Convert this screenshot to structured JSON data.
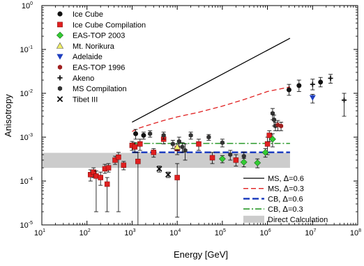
{
  "chart_data": {
    "type": "scatter",
    "xscale": "log",
    "yscale": "log",
    "xlim": [
      10,
      100000000
    ],
    "ylim": [
      1e-05,
      1
    ],
    "xlabel": "Energy [GeV]",
    "ylabel": "Anisotropy",
    "xticks": [
      {
        "v": 10,
        "mant": "10",
        "exp": "1"
      },
      {
        "v": 100,
        "mant": "10",
        "exp": "2"
      },
      {
        "v": 1000,
        "mant": "10",
        "exp": "3"
      },
      {
        "v": 10000,
        "mant": "10",
        "exp": "4"
      },
      {
        "v": 100000,
        "mant": "10",
        "exp": "5"
      },
      {
        "v": 1000000,
        "mant": "10",
        "exp": "6"
      },
      {
        "v": 10000000,
        "mant": "10",
        "exp": "7"
      },
      {
        "v": 100000000,
        "mant": "10",
        "exp": "8"
      }
    ],
    "yticks": [
      {
        "v": 1e-05,
        "mant": "10",
        "exp": "-5"
      },
      {
        "v": 0.0001,
        "mant": "10",
        "exp": "-4"
      },
      {
        "v": 0.001,
        "mant": "10",
        "exp": "-3"
      },
      {
        "v": 0.01,
        "mant": "10",
        "exp": "-2"
      },
      {
        "v": 0.1,
        "mant": "10",
        "exp": "-1"
      },
      {
        "v": 1,
        "mant": "10",
        "exp": "0"
      }
    ],
    "legend_top": [
      {
        "label": "Ice Cube",
        "marker": "circle",
        "color": "#111111"
      },
      {
        "label": "Ice Cube Compilation",
        "marker": "square",
        "color": "#e02020"
      },
      {
        "label": "EAS-TOP 2003",
        "marker": "diamond",
        "color": "#33cc33"
      },
      {
        "label": "Mt. Norikura",
        "marker": "triangle-up",
        "color": "#f0ee66"
      },
      {
        "label": "Adelaide",
        "marker": "triangle-down",
        "color": "#1f3fbf"
      },
      {
        "label": "EAS-TOP 1996",
        "marker": "hexagon",
        "color": "#a02020"
      },
      {
        "label": "Akeno",
        "marker": "plus",
        "color": "#111111"
      },
      {
        "label": "MS Compilation",
        "marker": "hexagon",
        "color": "#333333"
      },
      {
        "label": "Tibet III",
        "marker": "x",
        "color": "#111111"
      }
    ],
    "legend_bottom": [
      {
        "label_pre": "MS, ",
        "label_post": "=0.6",
        "style": "solid-black"
      },
      {
        "label_pre": "MS, ",
        "label_post": "=0.3",
        "style": "dashed-red"
      },
      {
        "label_pre": "CB, ",
        "label_post": "=0.6",
        "style": "dashed-blue"
      },
      {
        "label_pre": "CB, ",
        "label_post": "=0.3",
        "style": "dashdot-green"
      },
      {
        "label": "Direct Calculation",
        "style": "box-gray"
      }
    ],
    "lines": [
      {
        "name": "MS, Δ=0.6",
        "color": "#000000",
        "dash": "",
        "width": 1.3,
        "x": [
          1000,
          3160000
        ],
        "y": [
          0.0022,
          0.18
        ]
      },
      {
        "name": "MS, Δ=0.3",
        "color": "#e02020",
        "dash": "7,4",
        "width": 1.3,
        "x": [
          1000,
          1400,
          2000,
          5000,
          10000,
          30000,
          100000,
          300000,
          1000000,
          3160000
        ],
        "y": [
          0.00135,
          0.0016,
          0.0018,
          0.0024,
          0.0029,
          0.0037,
          0.0051,
          0.0072,
          0.011,
          0.014
        ]
      },
      {
        "name": "CB, Δ=0.6",
        "color": "#1f3fbf",
        "dash": "9,4",
        "width": 2.5,
        "x": [
          1000,
          3160000
        ],
        "y": [
          0.00045,
          0.00045
        ]
      },
      {
        "name": "CB, Δ=0.3",
        "color": "#2a9a2a",
        "dash": "9,3,2,3",
        "width": 1.6,
        "x": [
          1000,
          3160000
        ],
        "y": [
          0.00072,
          0.00072
        ]
      }
    ],
    "band": {
      "x": [
        10,
        3160000
      ],
      "y": [
        0.0002,
        0.00044
      ],
      "color": "#cccccc"
    },
    "points": [
      {
        "x": 120,
        "y": 0.00014,
        "lo": 0.0001,
        "hi": 0.00018,
        "m": "square",
        "c": "#e02020"
      },
      {
        "x": 140,
        "y": 0.00016,
        "lo": 0.00012,
        "hi": 0.0002,
        "m": "square",
        "c": "#e02020"
      },
      {
        "x": 160,
        "y": 0.00013,
        "lo": 2e-05,
        "hi": 0.00017,
        "m": "square",
        "c": "#e02020"
      },
      {
        "x": 200,
        "y": 0.00012,
        "lo": 8e-05,
        "hi": 0.00016,
        "m": "square",
        "c": "#e02020"
      },
      {
        "x": 250,
        "y": 0.00019,
        "lo": 0.00015,
        "hi": 0.00024,
        "m": "square",
        "c": "#e02020"
      },
      {
        "x": 280,
        "y": 8.5e-05,
        "lo": 2e-05,
        "hi": 0.00012,
        "m": "square",
        "c": "#e02020"
      },
      {
        "x": 300,
        "y": 0.0002,
        "lo": 0.00016,
        "hi": 0.00025,
        "m": "square",
        "c": "#e02020"
      },
      {
        "x": 420,
        "y": 0.0003,
        "lo": 0.00024,
        "hi": 0.00037,
        "m": "square",
        "c": "#e02020"
      },
      {
        "x": 500,
        "y": 0.00035,
        "lo": 2e-05,
        "hi": 0.00045,
        "m": "square",
        "c": "#e02020"
      },
      {
        "x": 650,
        "y": 0.00023,
        "lo": 0.00018,
        "hi": 0.00028,
        "m": "square",
        "c": "#e02020"
      },
      {
        "x": 1000,
        "y": 0.00065,
        "lo": 0.0005,
        "hi": 0.0008,
        "m": "square",
        "c": "#e02020"
      },
      {
        "x": 1150,
        "y": 0.0006,
        "lo": 0.00045,
        "hi": 0.00075,
        "m": "square",
        "c": "#e02020"
      },
      {
        "x": 1350,
        "y": 0.00028,
        "lo": 1e-05,
        "hi": 0.00045,
        "m": "square",
        "c": "#e02020"
      },
      {
        "x": 1500,
        "y": 0.0007,
        "lo": 0.0005,
        "hi": 0.0009,
        "m": "square",
        "c": "#e02020"
      },
      {
        "x": 3000,
        "y": 0.00045,
        "lo": 0.00035,
        "hi": 0.00055,
        "m": "square",
        "c": "#e02020"
      },
      {
        "x": 5000,
        "y": 0.0009,
        "lo": 0.0007,
        "hi": 0.0011,
        "m": "square",
        "c": "#e02020"
      },
      {
        "x": 10000,
        "y": 0.00055,
        "lo": 0.0004,
        "hi": 0.0007,
        "m": "square",
        "c": "#e02020"
      },
      {
        "x": 10000,
        "y": 0.00012,
        "lo": 1.5e-05,
        "hi": 0.00025,
        "m": "square",
        "c": "#e02020"
      },
      {
        "x": 30000,
        "y": 0.0007,
        "lo": 0.0005,
        "hi": 0.0009,
        "m": "square",
        "c": "#e02020"
      },
      {
        "x": 60000,
        "y": 0.00034,
        "lo": 0.00025,
        "hi": 0.00045,
        "m": "square",
        "c": "#e02020"
      },
      {
        "x": 200000,
        "y": 0.0003,
        "lo": 0.00022,
        "hi": 0.0004,
        "m": "square",
        "c": "#e02020"
      },
      {
        "x": 1000000,
        "y": 0.0007,
        "lo": 0.0004,
        "hi": 0.001,
        "m": "square",
        "c": "#e02020"
      },
      {
        "x": 1100000,
        "y": 0.0011,
        "lo": 0.0008,
        "hi": 0.0014,
        "m": "square",
        "c": "#e02020"
      },
      {
        "x": 1200,
        "y": 0.0012,
        "lo": 0.0009,
        "hi": 0.0015,
        "m": "circle",
        "c": "#111111"
      },
      {
        "x": 1800,
        "y": 0.0011,
        "lo": 0.0009,
        "hi": 0.0013,
        "m": "circle",
        "c": "#111111"
      },
      {
        "x": 2500,
        "y": 0.0012,
        "lo": 0.001,
        "hi": 0.0014,
        "m": "hexagon",
        "c": "#333333"
      },
      {
        "x": 5000,
        "y": 0.0011,
        "lo": 0.0009,
        "hi": 0.0013,
        "m": "hexagon",
        "c": "#333333"
      },
      {
        "x": 8000,
        "y": 0.0007,
        "lo": 0.00055,
        "hi": 0.00085,
        "m": "hexagon",
        "c": "#333333"
      },
      {
        "x": 11000,
        "y": 0.0008,
        "lo": 0.0006,
        "hi": 0.001,
        "m": "hexagon",
        "c": "#333333"
      },
      {
        "x": 13000,
        "y": 0.0006,
        "lo": 0.00045,
        "hi": 0.00075,
        "m": "hexagon",
        "c": "#333333"
      },
      {
        "x": 15000,
        "y": 0.0005,
        "lo": 0.0003,
        "hi": 0.0007,
        "m": "hexagon",
        "c": "#333333"
      },
      {
        "x": 20000,
        "y": 0.0011,
        "lo": 0.0009,
        "hi": 0.0013,
        "m": "hexagon",
        "c": "#333333"
      },
      {
        "x": 50000,
        "y": 0.001,
        "lo": 0.00085,
        "hi": 0.00115,
        "m": "hexagon",
        "c": "#333333"
      },
      {
        "x": 100000,
        "y": 0.00075,
        "lo": 0.0006,
        "hi": 0.0009,
        "m": "hexagon",
        "c": "#333333"
      },
      {
        "x": 150000,
        "y": 0.0004,
        "lo": 0.0003,
        "hi": 0.0005,
        "m": "hexagon",
        "c": "#333333"
      },
      {
        "x": 300000,
        "y": 0.00037,
        "lo": 0.00028,
        "hi": 0.00046,
        "m": "hexagon",
        "c": "#333333"
      },
      {
        "x": 1300000,
        "y": 0.0035,
        "lo": 0.0025,
        "hi": 0.0045,
        "m": "hexagon",
        "c": "#333333"
      },
      {
        "x": 1400000,
        "y": 0.0025,
        "lo": 0.0018,
        "hi": 0.0032,
        "m": "hexagon",
        "c": "#333333"
      },
      {
        "x": 1500000,
        "y": 0.0018,
        "lo": 0.0014,
        "hi": 0.0022,
        "m": "hexagon",
        "c": "#333333"
      },
      {
        "x": 3000000,
        "y": 0.012,
        "lo": 0.009,
        "hi": 0.016,
        "m": "circle",
        "c": "#111111"
      },
      {
        "x": 5000000,
        "y": 0.015,
        "lo": 0.011,
        "hi": 0.02,
        "m": "circle",
        "c": "#111111"
      },
      {
        "x": 15000000,
        "y": 0.018,
        "lo": 0.014,
        "hi": 0.023,
        "m": "circle",
        "c": "#111111"
      },
      {
        "x": 1700000,
        "y": 0.0019,
        "lo": 0.0014,
        "hi": 0.0024,
        "m": "hexagon",
        "c": "#a02020"
      },
      {
        "x": 2000000,
        "y": 0.0018,
        "lo": 0.0014,
        "hi": 0.0022,
        "m": "hexagon",
        "c": "#a02020"
      },
      {
        "x": 10000000,
        "y": 0.016,
        "lo": 0.012,
        "hi": 0.021,
        "m": "plus",
        "c": "#111111"
      },
      {
        "x": 25000000,
        "y": 0.022,
        "lo": 0.017,
        "hi": 0.027,
        "m": "plus",
        "c": "#111111"
      },
      {
        "x": 50000000,
        "y": 0.007,
        "lo": 0.003,
        "hi": 0.01,
        "m": "plus",
        "c": "#111111"
      },
      {
        "x": 100000,
        "y": 0.00032,
        "lo": 0.00026,
        "hi": 0.00038,
        "m": "diamond",
        "c": "#33cc33"
      },
      {
        "x": 300000,
        "y": 0.00027,
        "lo": 0.00021,
        "hi": 0.00033,
        "m": "diamond",
        "c": "#33cc33"
      },
      {
        "x": 600000,
        "y": 0.00026,
        "lo": 0.0002,
        "hi": 0.00032,
        "m": "diamond",
        "c": "#33cc33"
      },
      {
        "x": 900000,
        "y": 0.00045,
        "lo": 0.00035,
        "hi": 0.00055,
        "m": "diamond",
        "c": "#33cc33"
      },
      {
        "x": 1300000,
        "y": 0.0009,
        "lo": 0.0006,
        "hi": 0.0012,
        "m": "diamond",
        "c": "#33cc33"
      },
      {
        "x": 10000,
        "y": 0.0006,
        "lo": 0.0005,
        "hi": 0.0007,
        "m": "triangle-up",
        "c": "#f0ee66"
      },
      {
        "x": 10000000,
        "y": 0.008,
        "lo": 0.006,
        "hi": 0.0095,
        "m": "triangle-down",
        "c": "#1f3fbf"
      },
      {
        "x": 4000,
        "y": 0.00019,
        "lo": 0.00016,
        "hi": 0.00022,
        "m": "x",
        "c": "#111111"
      },
      {
        "x": 6300,
        "y": 0.00014,
        "lo": 0.00012,
        "hi": 0.00016,
        "m": "x",
        "c": "#111111"
      }
    ]
  }
}
